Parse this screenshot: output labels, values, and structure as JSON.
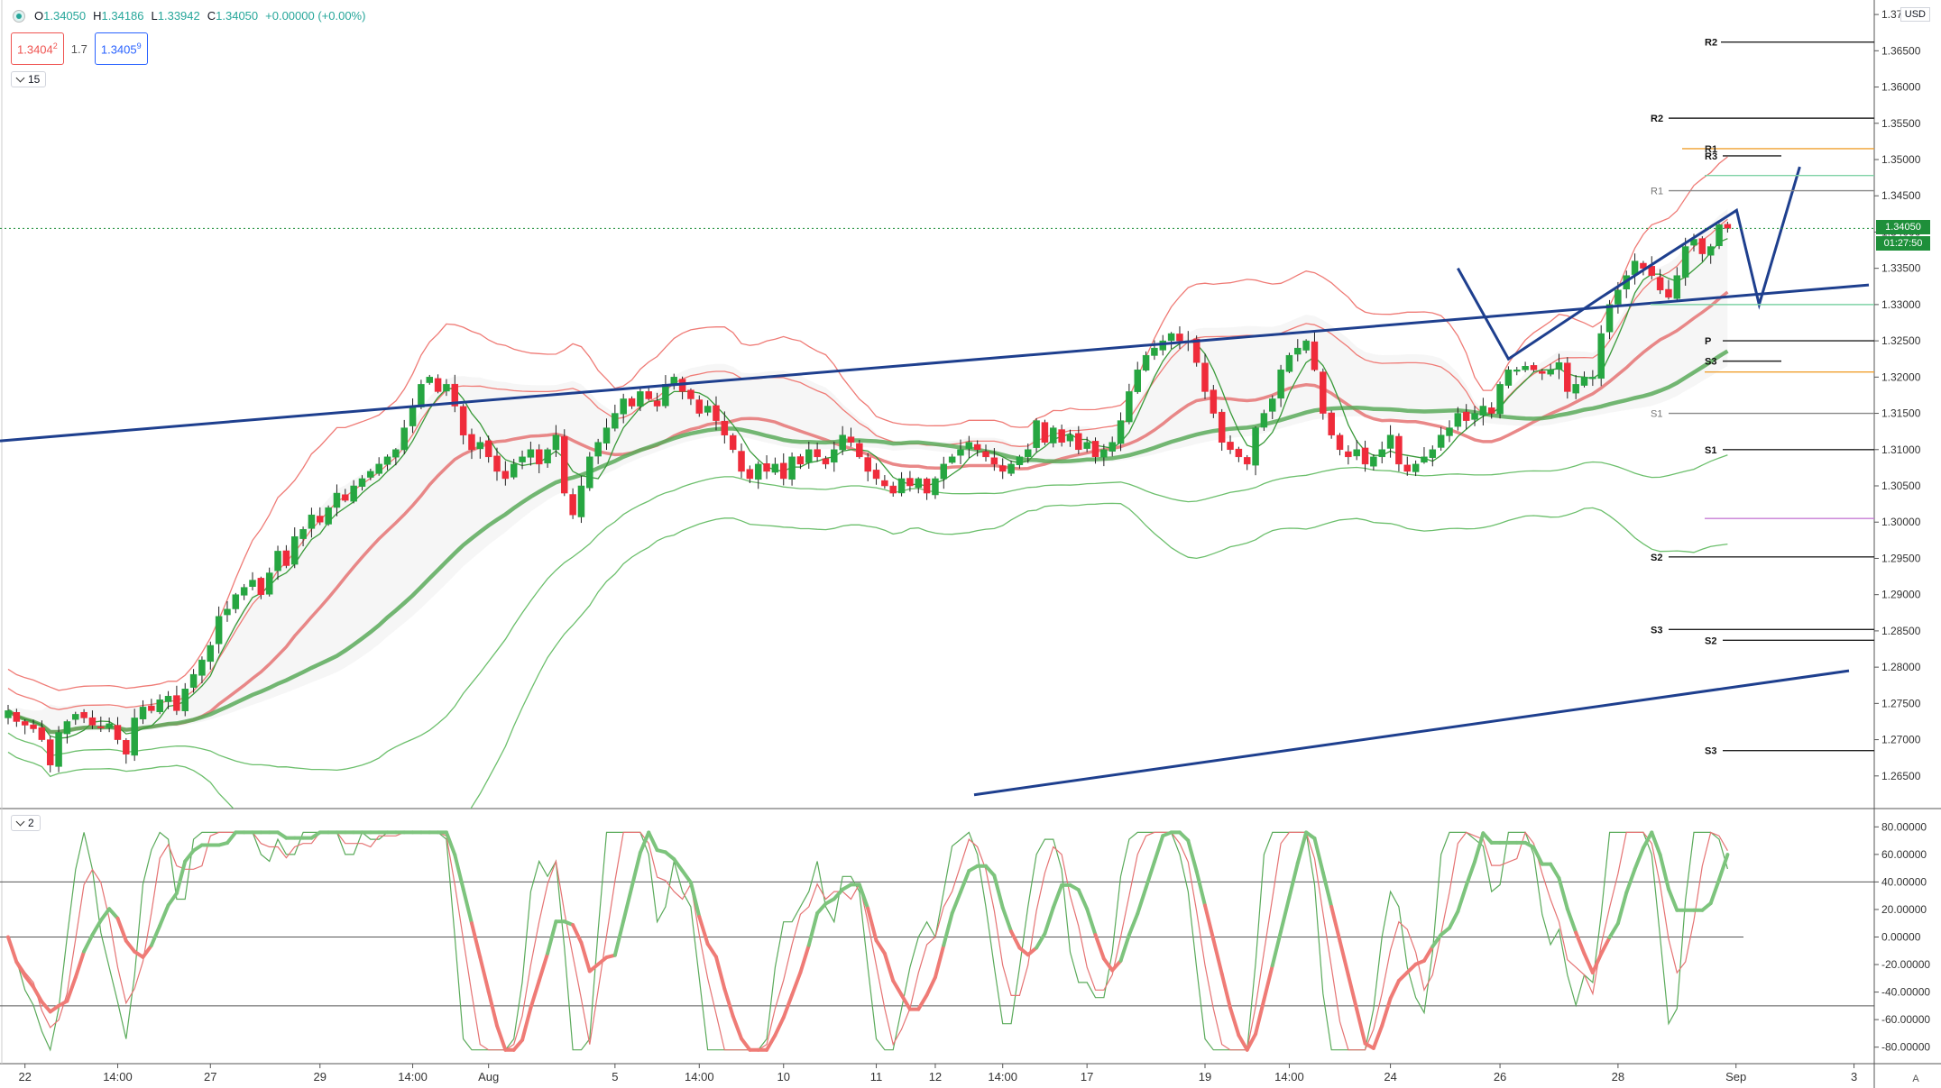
{
  "header": {
    "open_label": "O",
    "open": "1.34050",
    "high_label": "H",
    "high": "1.34186",
    "low_label": "L",
    "low": "1.33942",
    "close_label": "C",
    "close": "1.34050",
    "change": "+0.00000 (+0.00%)"
  },
  "trade": {
    "sell_price": "1.3404",
    "sell_sup": "2",
    "spread": "1.7",
    "buy_price": "1.3405",
    "buy_sup": "9"
  },
  "main_pane": {
    "indicator_collapse": "15"
  },
  "osc_pane": {
    "indicator_collapse": "2"
  },
  "currency": "USD",
  "current_price_tag": {
    "price": "1.34050",
    "countdown": "01:27:50"
  },
  "auto_scale_label": "A",
  "colors": {
    "bull": "#26a641",
    "bear": "#ef2b3a",
    "upper_band": "#ef7b76",
    "lower_band": "#6cbf6c",
    "trend": "#1e3f8e",
    "price_tag": "#1e8f3a"
  },
  "chart_data": {
    "type": "candlestick",
    "price_axis": {
      "range": [
        1.2605,
        1.372
      ],
      "ticks": [
        "1.37000",
        "1.36500",
        "1.36000",
        "1.35500",
        "1.35000",
        "1.34500",
        "1.34000",
        "1.33500",
        "1.33000",
        "1.32500",
        "1.32000",
        "1.31500",
        "1.31000",
        "1.30500",
        "1.30000",
        "1.29500",
        "1.29000",
        "1.28500",
        "1.28000",
        "1.27500",
        "1.27000",
        "1.26500"
      ]
    },
    "time_axis": {
      "labels": [
        {
          "bar": 2,
          "text": "22"
        },
        {
          "bar": 13,
          "text": "14:00"
        },
        {
          "bar": 24,
          "text": "27"
        },
        {
          "bar": 37,
          "text": "29"
        },
        {
          "bar": 48,
          "text": "14:00"
        },
        {
          "bar": 57,
          "text": "Aug"
        },
        {
          "bar": 72,
          "text": "5"
        },
        {
          "bar": 82,
          "text": "14:00"
        },
        {
          "bar": 92,
          "text": "10"
        },
        {
          "bar": 103,
          "text": "11"
        },
        {
          "bar": 110,
          "text": "12"
        },
        {
          "bar": 118,
          "text": "14:00"
        },
        {
          "bar": 128,
          "text": "17"
        },
        {
          "bar": 142,
          "text": "19"
        },
        {
          "bar": 152,
          "text": "14:00"
        },
        {
          "bar": 164,
          "text": "24"
        },
        {
          "bar": 177,
          "text": "26"
        },
        {
          "bar": 191,
          "text": "28"
        },
        {
          "bar": 205,
          "text": "Sep"
        },
        {
          "bar": 219,
          "text": "3"
        }
      ]
    },
    "closes": [
      1.274,
      1.2725,
      1.272,
      1.2715,
      1.27,
      1.2665,
      1.271,
      1.2725,
      1.2735,
      1.273,
      1.272,
      1.2718,
      1.2722,
      1.27,
      1.268,
      1.273,
      1.2745,
      1.274,
      1.2755,
      1.276,
      1.274,
      1.277,
      1.279,
      1.281,
      1.283,
      1.287,
      1.288,
      1.29,
      1.291,
      1.292,
      1.29,
      1.293,
      1.296,
      1.294,
      1.298,
      1.299,
      1.301,
      1.3,
      1.302,
      1.304,
      1.303,
      1.305,
      1.306,
      1.307,
      1.308,
      1.309,
      1.31,
      1.313,
      1.316,
      1.319,
      1.32,
      1.318,
      1.319,
      1.316,
      1.312,
      1.31,
      1.311,
      1.309,
      1.307,
      1.306,
      1.308,
      1.309,
      1.31,
      1.308,
      1.31,
      1.312,
      1.304,
      1.301,
      1.305,
      1.309,
      1.311,
      1.313,
      1.315,
      1.317,
      1.316,
      1.318,
      1.317,
      1.316,
      1.319,
      1.32,
      1.318,
      1.317,
      1.315,
      1.316,
      1.314,
      1.312,
      1.31,
      1.307,
      1.306,
      1.308,
      1.307,
      1.308,
      1.306,
      1.309,
      1.308,
      1.31,
      1.309,
      1.308,
      1.31,
      1.312,
      1.311,
      1.309,
      1.307,
      1.306,
      1.305,
      1.304,
      1.306,
      1.305,
      1.306,
      1.304,
      1.306,
      1.308,
      1.309,
      1.31,
      1.311,
      1.31,
      1.309,
      1.308,
      1.307,
      1.308,
      1.309,
      1.31,
      1.314,
      1.311,
      1.313,
      1.311,
      1.312,
      1.31,
      1.311,
      1.309,
      1.31,
      1.311,
      1.314,
      1.318,
      1.321,
      1.323,
      1.324,
      1.325,
      1.326,
      1.325,
      1.325,
      1.322,
      1.318,
      1.315,
      1.311,
      1.31,
      1.309,
      1.308,
      1.313,
      1.315,
      1.317,
      1.321,
      1.323,
      1.324,
      1.325,
      1.321,
      1.315,
      1.312,
      1.31,
      1.309,
      1.31,
      1.308,
      1.309,
      1.31,
      1.312,
      1.308,
      1.307,
      1.308,
      1.309,
      1.31,
      1.312,
      1.313,
      1.315,
      1.314,
      1.315,
      1.316,
      1.315,
      1.319,
      1.321,
      1.321,
      1.3215,
      1.321,
      1.3205,
      1.321,
      1.322,
      1.318,
      1.319,
      1.32,
      1.32,
      1.326,
      1.33,
      1.332,
      1.334,
      1.336,
      1.335,
      1.334,
      1.332,
      1.331,
      1.334,
      1.338,
      1.339,
      1.337,
      1.338,
      1.341,
      1.3405
    ],
    "projection_path": [
      [
        1.343,
        0
      ],
      [
        1.33,
        3
      ],
      [
        1.349,
        8
      ]
    ],
    "oscillator": {
      "range": [
        -92,
        92
      ],
      "ticks": [
        "80.00000",
        "60.00000",
        "40.00000",
        "20.00000",
        "0.00000",
        "-20.00000",
        "-40.00000",
        "-60.00000",
        "-80.00000"
      ],
      "levels": [
        40,
        0,
        -50
      ]
    }
  }
}
